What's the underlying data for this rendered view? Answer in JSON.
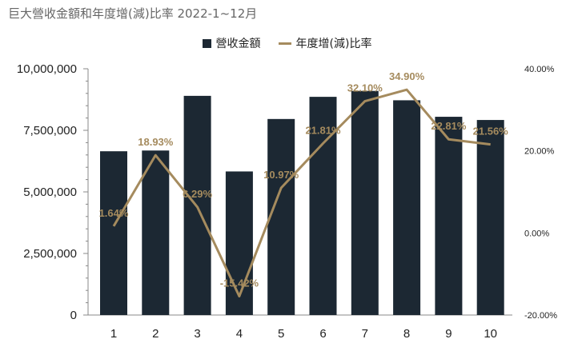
{
  "chart_data": {
    "type": "bar",
    "title": "巨大營收金額和年度增(減)比率 2022-1~12月",
    "categories": [
      "1",
      "2",
      "3",
      "4",
      "5",
      "6",
      "7",
      "8",
      "9",
      "10"
    ],
    "series": [
      {
        "name": "營收金額",
        "type": "bar",
        "axis": "left",
        "values": [
          6650000,
          6680000,
          8900000,
          5830000,
          7960000,
          8860000,
          9100000,
          8720000,
          8050000,
          7920000
        ]
      },
      {
        "name": "年度增(減)比率",
        "type": "line",
        "axis": "right",
        "values": [
          1.64,
          18.93,
          6.29,
          -15.42,
          10.97,
          21.81,
          32.1,
          34.9,
          22.81,
          21.56
        ],
        "labels": [
          "1.64%",
          "18.93%",
          "6.29%",
          "-15.42%",
          "10.97%",
          "21.81%",
          "32.10%",
          "34.90%",
          "22.81%",
          "21.56%"
        ]
      }
    ],
    "left_axis": {
      "ylim": [
        0,
        10000000
      ],
      "ticks": [
        0,
        2500000,
        5000000,
        7500000,
        10000000
      ],
      "tick_labels": [
        "0",
        "2,500,000",
        "5,000,000",
        "7,500,000",
        "10,000,000"
      ]
    },
    "right_axis": {
      "ylim": [
        -20,
        40
      ],
      "ticks": [
        -20,
        0,
        20,
        40
      ],
      "tick_labels": [
        "-20.00%",
        "0.00%",
        "20.00%",
        "40.00%"
      ]
    },
    "grid": false,
    "legend": "top-center",
    "colors": {
      "bar": "#1c2833",
      "line": "#a58b5e",
      "label": "#a58b5e"
    }
  }
}
